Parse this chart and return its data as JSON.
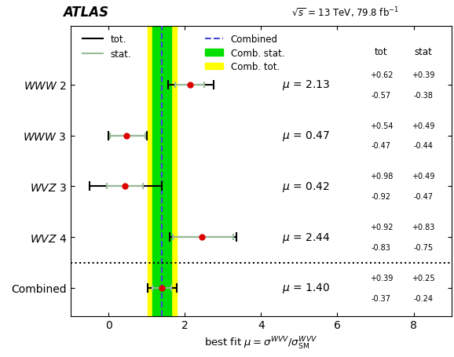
{
  "categories": [
    "WWW 2",
    "WWW 3",
    "WVZ 3",
    "WVZ 4",
    "Combined"
  ],
  "mu_values": [
    2.13,
    0.47,
    0.42,
    2.44,
    1.4
  ],
  "err_tot_up": [
    0.62,
    0.54,
    0.98,
    0.92,
    0.39
  ],
  "err_tot_dn": [
    0.57,
    0.47,
    0.92,
    0.83,
    0.37
  ],
  "err_stat_up": [
    0.39,
    0.49,
    0.49,
    0.83,
    0.25
  ],
  "err_stat_dn": [
    0.38,
    0.44,
    0.47,
    0.75,
    0.24
  ],
  "combined_mu": 1.4,
  "combined_stat_up": 0.25,
  "combined_stat_dn": 0.24,
  "combined_tot_up": 0.39,
  "combined_tot_dn": 0.37,
  "mu_labels": [
    "2.13",
    "0.47",
    "0.42",
    "2.44",
    "1.40"
  ],
  "tot_up_labels": [
    "+0.62",
    "+0.54",
    "+0.98",
    "+0.92",
    "+0.39"
  ],
  "tot_dn_labels": [
    "-0.57",
    "-0.47",
    "-0.92",
    "-0.83",
    "-0.37"
  ],
  "stat_up_labels": [
    "+0.39",
    "+0.49",
    "+0.49",
    "+0.83",
    "+0.25"
  ],
  "stat_dn_labels": [
    "-0.38",
    "-0.44",
    "-0.47",
    "-0.75",
    "-0.24"
  ],
  "xlim": [
    -1,
    9
  ],
  "xticks": [
    0,
    2,
    4,
    6,
    8
  ],
  "dot_color": "#dd0000",
  "tot_color": "#000000",
  "stat_color": "#9aba9a",
  "comb_line_color": "#4444dd",
  "comb_stat_color": "#00dd00",
  "comb_tot_color": "#ffff00",
  "atlas_text": "ATLAS",
  "energy_text": "$\\sqrt{s}$ = 13 TeV, 79.8 fb$^{-1}$",
  "xlabel": "best fit $\\mu = \\sigma^{WVV}/\\sigma^{WVV}_{\\mathrm{SM}}$",
  "figsize": [
    5.78,
    4.56
  ],
  "dpi": 100
}
